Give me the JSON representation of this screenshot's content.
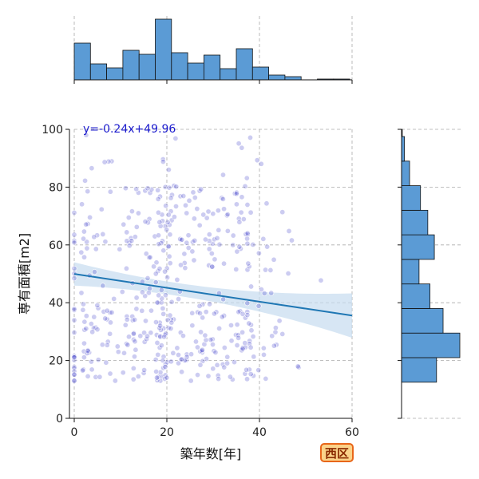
{
  "chart_data": {
    "type": "scatter",
    "xlabel": "築年数[年]",
    "ylabel": "専有面積[m2]",
    "xlim": [
      0,
      60
    ],
    "ylim": [
      0,
      100
    ],
    "x_ticks": [
      "0",
      "20",
      "40",
      "60"
    ],
    "y_ticks": [
      "0",
      "20",
      "40",
      "60",
      "80",
      "100"
    ],
    "grid": true,
    "badge": "西区",
    "regression": {
      "label": "y=-0.24x+49.96",
      "slope": -0.24,
      "intercept": 49.96,
      "x_range": [
        0,
        60
      ]
    },
    "top_histogram": {
      "bin_edges": [
        0,
        3.5,
        7,
        10.5,
        14,
        17.5,
        21,
        24.5,
        28,
        31.5,
        35,
        38.5,
        42,
        45.5,
        49,
        52.5,
        56,
        59.5
      ],
      "counts": [
        46,
        20,
        15,
        37,
        32,
        76,
        34,
        21,
        31,
        14,
        39,
        16,
        6,
        4,
        0,
        1,
        1
      ]
    },
    "right_histogram": {
      "bin_edges": [
        12.5,
        21,
        29.5,
        38,
        46.5,
        55,
        63.5,
        72,
        80.5,
        89,
        97.5,
        100
      ],
      "counts": [
        48,
        80,
        57,
        39,
        24,
        45,
        36,
        26,
        11,
        4,
        1
      ]
    },
    "colors": {
      "points": "#3535c8",
      "line": "#1f77b4",
      "band": "#c6dbef",
      "hist": "#5b9bd5",
      "equation": "#1a1acd"
    }
  }
}
